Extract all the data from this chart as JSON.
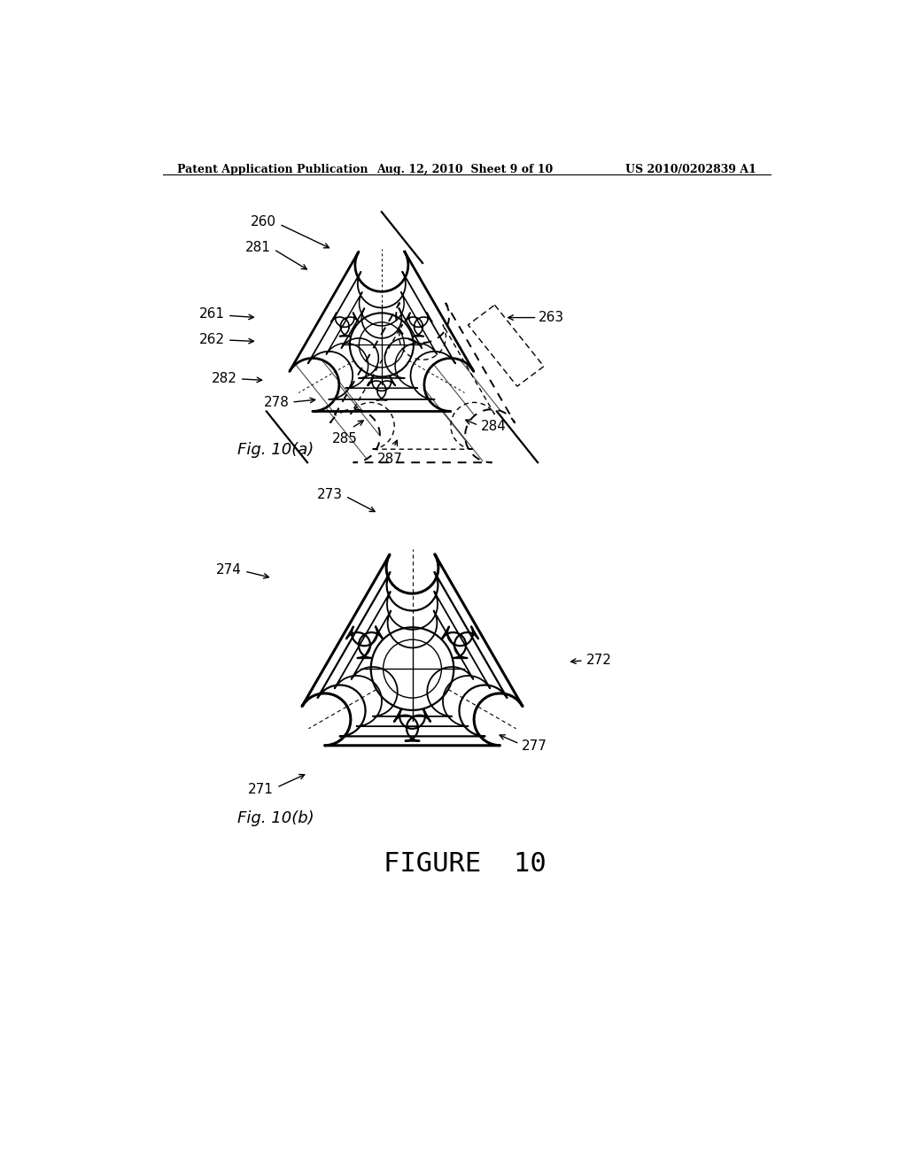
{
  "background_color": "#ffffff",
  "header_left": "Patent Application Publication",
  "header_center": "Aug. 12, 2010  Sheet 9 of 10",
  "header_right": "US 2010/0202839 A1",
  "figure_title": "FIGURE  10",
  "fig_a_label": "Fig. 10(a)",
  "fig_b_label": "Fig. 10(b)",
  "line_color": "#000000"
}
